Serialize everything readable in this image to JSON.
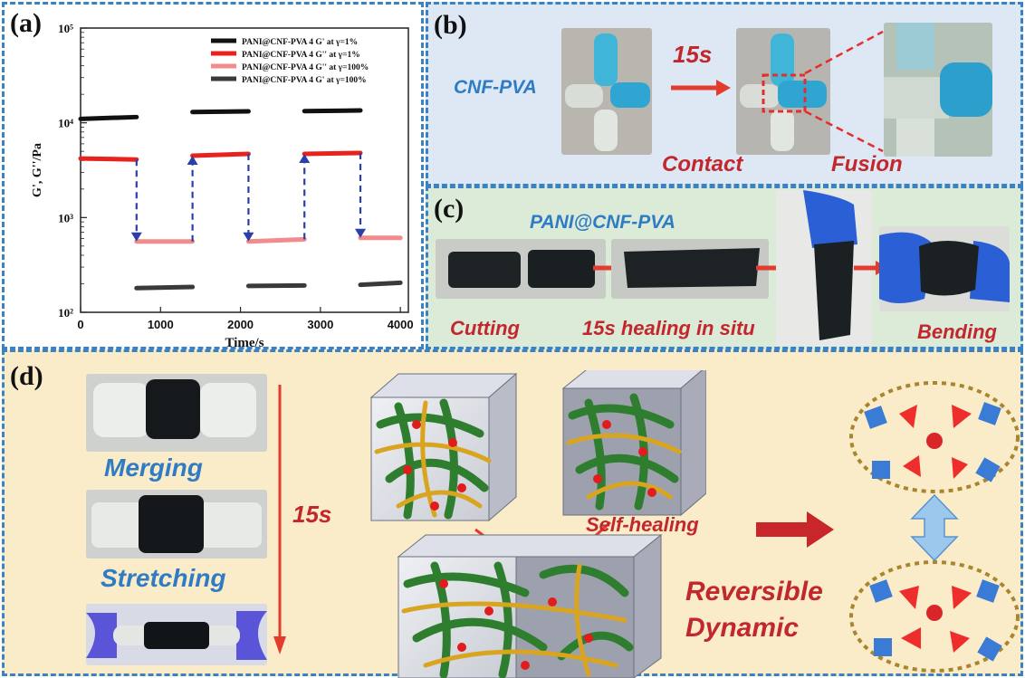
{
  "panel_labels": {
    "a": "(a)",
    "b": "(b)",
    "c": "(c)",
    "d": "(d)"
  },
  "chart_data": {
    "type": "line",
    "xlabel": "Time/s",
    "ylabel": "G', G''/Pa",
    "xlim": [
      0,
      4100
    ],
    "ylim": [
      100,
      100000
    ],
    "yscale": "log",
    "x_ticks": [
      0,
      1000,
      2000,
      3000,
      4000
    ],
    "y_ticks": [
      {
        "value": 100,
        "label": "10²"
      },
      {
        "value": 1000,
        "label": "10³"
      },
      {
        "value": 10000,
        "label": "10⁴"
      },
      {
        "value": 100000,
        "label": "10⁵"
      }
    ],
    "legend_position": "top-right",
    "series": [
      {
        "name": "PANI@CNF-PVA 4  G'  at  γ=1%",
        "color": "#111111",
        "segments": [
          {
            "x": [
              0,
              700
            ],
            "y": [
              11000,
              11500
            ]
          },
          {
            "x": [
              1400,
              2100
            ],
            "y": [
              13000,
              13200
            ]
          },
          {
            "x": [
              2800,
              3500
            ],
            "y": [
              13300,
              13500
            ]
          }
        ]
      },
      {
        "name": "PANI@CNF-PVA 4  G''  at  γ=1%",
        "color": "#e8231d",
        "segments": [
          {
            "x": [
              0,
              700
            ],
            "y": [
              4200,
              4100
            ]
          },
          {
            "x": [
              1400,
              2100
            ],
            "y": [
              4500,
              4700
            ]
          },
          {
            "x": [
              2800,
              3500
            ],
            "y": [
              4700,
              4800
            ]
          }
        ]
      },
      {
        "name": "PANI@CNF-PVA 4  G''  at  γ=100%",
        "color": "#f28b8b",
        "segments": [
          {
            "x": [
              700,
              1400
            ],
            "y": [
              560,
              560
            ]
          },
          {
            "x": [
              2100,
              2800
            ],
            "y": [
              560,
              590
            ]
          },
          {
            "x": [
              3500,
              4000
            ],
            "y": [
              610,
              610
            ]
          }
        ]
      },
      {
        "name": "PANI@CNF-PVA 4  G'  at  γ=100%",
        "color": "#3a3a3a",
        "segments": [
          {
            "x": [
              700,
              1400
            ],
            "y": [
              180,
              185
            ]
          },
          {
            "x": [
              2100,
              2800
            ],
            "y": [
              190,
              192
            ]
          },
          {
            "x": [
              3500,
              4000
            ],
            "y": [
              195,
              205
            ]
          }
        ]
      }
    ],
    "transition_arrows": [
      {
        "x": 700,
        "from": 4100,
        "to": 560,
        "direction": "down"
      },
      {
        "x": 1400,
        "from": 560,
        "to": 4500,
        "direction": "up"
      },
      {
        "x": 2100,
        "from": 4700,
        "to": 560,
        "direction": "down"
      },
      {
        "x": 2800,
        "from": 590,
        "to": 4700,
        "direction": "up"
      },
      {
        "x": 3500,
        "from": 4800,
        "to": 610,
        "direction": "down"
      }
    ],
    "arrow_color": "#2b3fa8"
  },
  "panel_b": {
    "material": "CNF-PVA",
    "time": "15s",
    "step1": "Contact",
    "step2": "Fusion"
  },
  "panel_c": {
    "material": "PANI@CNF-PVA",
    "step1": "Cutting",
    "step2": "15s healing in situ",
    "step3": "Bending"
  },
  "panel_d": {
    "merging": "Merging",
    "stretching": "Stretching",
    "time": "15s",
    "self_healing": "Self-healing",
    "reversible": "Reversible",
    "dynamic": "Dynamic"
  },
  "colors": {
    "dark_red": "#c1272d",
    "blue": "#2f7cc4",
    "panel_b_bg": "#dde8f4",
    "panel_c_bg": "#dcebd8",
    "panel_d_bg": "#fbecc9"
  }
}
